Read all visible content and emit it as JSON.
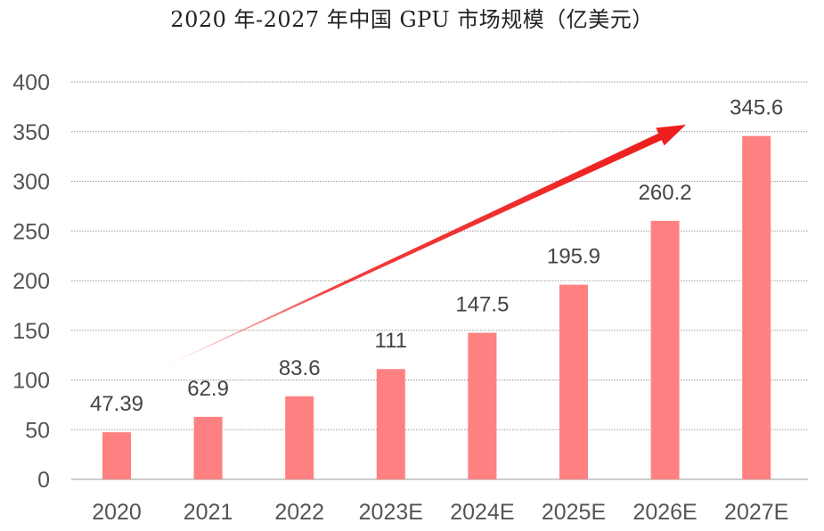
{
  "chart_data": {
    "type": "bar",
    "title": "2020 年-2027 年中国 GPU 市场规模（亿美元）",
    "categories": [
      "2020",
      "2021",
      "2022",
      "2023E",
      "2024E",
      "2025E",
      "2026E",
      "2027E"
    ],
    "values": [
      47.39,
      62.9,
      83.6,
      111,
      147.5,
      195.9,
      260.2,
      345.6
    ],
    "data_labels": [
      "47.39",
      "62.9",
      "83.6",
      "111",
      "147.5",
      "195.9",
      "260.2",
      "345.6"
    ],
    "y_ticks": [
      "0",
      "50",
      "100",
      "150",
      "200",
      "250",
      "300",
      "350",
      "400"
    ],
    "ylim": [
      0,
      400
    ],
    "grid": true,
    "colors": {
      "bar": "#ff8080",
      "arrow": "#ee1c1c",
      "grid": "#999999"
    }
  }
}
